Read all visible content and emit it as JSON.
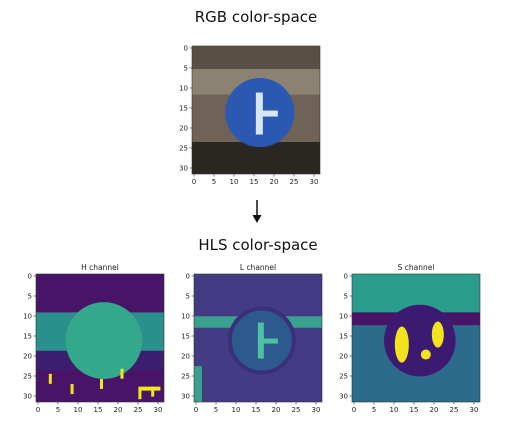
{
  "top_title": "RGB color-space",
  "bottom_title": "HLS color-space",
  "panels": [
    {
      "id": "rgb",
      "title": "",
      "xticks": [
        "0",
        "5",
        "10",
        "15",
        "20",
        "25",
        "30"
      ],
      "yticks": [
        "0",
        "5",
        "10",
        "15",
        "20",
        "25",
        "30"
      ],
      "palette": {
        "bg": "#6e6356",
        "sign": "#2b58b0",
        "symbol": "#d8e6f2",
        "dark": "#2a2622"
      }
    },
    {
      "id": "h",
      "title": "H channel",
      "xticks": [
        "0",
        "5",
        "10",
        "15",
        "20",
        "25",
        "30"
      ],
      "yticks": [
        "0",
        "5",
        "10",
        "15",
        "20",
        "25",
        "30"
      ],
      "palette": {
        "bg": "#3b1f6e",
        "sign": "#34a88a",
        "symbol": "#2b8f8c",
        "dark": "#471468",
        "accent": "#f3e51e"
      }
    },
    {
      "id": "l",
      "title": "L channel",
      "xticks": [
        "0",
        "5",
        "10",
        "15",
        "20",
        "25",
        "30"
      ],
      "yticks": [
        "0",
        "5",
        "10",
        "15",
        "20",
        "25",
        "30"
      ],
      "palette": {
        "bg": "#433b84",
        "sign": "#2d5a8c",
        "symbol": "#4ec1a2",
        "dark": "#3a2f7a",
        "band": "#3aa18f"
      }
    },
    {
      "id": "s",
      "title": "S channel",
      "xticks": [
        "0",
        "5",
        "10",
        "15",
        "20",
        "25",
        "30"
      ],
      "yticks": [
        "0",
        "5",
        "10",
        "15",
        "20",
        "25",
        "30"
      ],
      "palette": {
        "bg": "#2d6b8d",
        "sign": "#3d1a72",
        "symbol": "#f2e31c",
        "dark": "#471468",
        "band": "#2a9d8c"
      }
    }
  ],
  "arrow_icon": "down-arrow-icon"
}
